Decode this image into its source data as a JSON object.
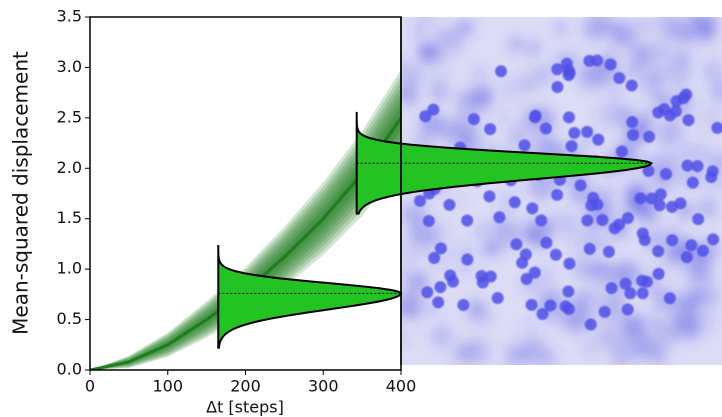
{
  "chart_data": {
    "type": "band",
    "xlabel": "Δt [steps]",
    "ylabel": "Mean-squared displacement",
    "x": [
      0,
      50,
      100,
      150,
      200,
      250,
      300,
      350,
      400
    ],
    "values": [
      0,
      0.08,
      0.25,
      0.5,
      0.78,
      1.12,
      1.5,
      1.95,
      2.5
    ],
    "spread": [
      0,
      0.03,
      0.06,
      0.09,
      0.12,
      0.15,
      0.18,
      0.21,
      0.24
    ],
    "color": "#1e7d1e",
    "distributions": [
      {
        "x": 165,
        "min": 0.22,
        "max": 1.23,
        "mode": 0.76,
        "width": 70
      },
      {
        "x": 343,
        "min": 1.55,
        "max": 2.55,
        "mode": 2.05,
        "width": 36
      }
    ],
    "violin_color": "#22c322",
    "xlim": [
      0,
      400
    ],
    "xticks": [
      0,
      100,
      200,
      300,
      400
    ],
    "ylim": [
      0,
      3.5
    ],
    "yticks": [
      {
        "value": 0,
        "label": "0.0"
      },
      0.5,
      {
        "value": 1,
        "label": "1.0"
      },
      1.5,
      {
        "value": 2,
        "label": "2.0"
      },
      2.5,
      {
        "value": 3,
        "label": "3.0"
      },
      3.5
    ]
  }
}
